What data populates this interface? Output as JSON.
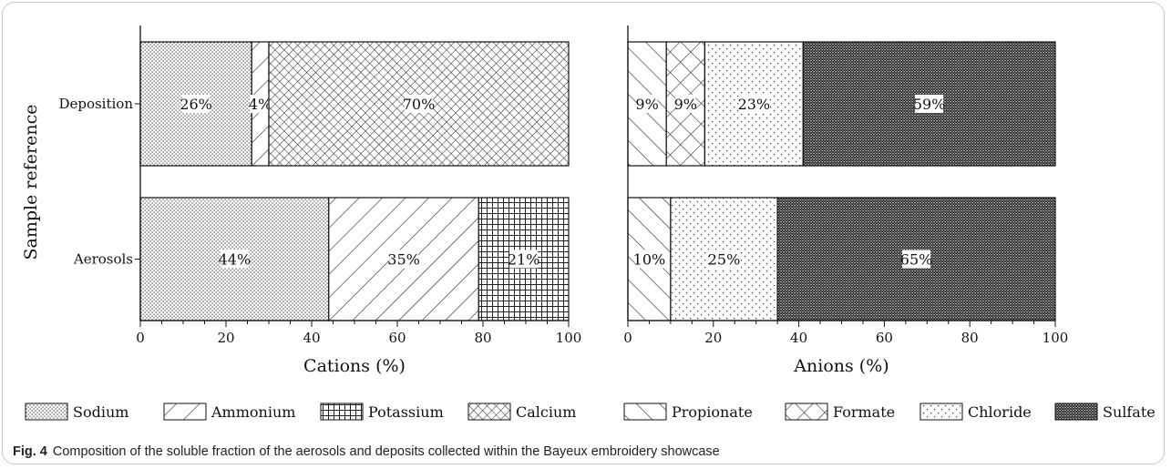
{
  "caption": {
    "label": "Fig. 4",
    "text": "Composition of the soluble fraction of the aerosols and deposits collected within the Bayeux embroidery showcase"
  },
  "chart_data": [
    {
      "type": "bar",
      "orientation": "horizontal",
      "stacked": true,
      "ylabel": "Sample reference",
      "xlabel": "Cations (%)",
      "xlim": [
        0,
        100
      ],
      "xticks": [
        0,
        20,
        40,
        60,
        80,
        100
      ],
      "categories": [
        "Deposition",
        "Aerosols"
      ],
      "series": [
        {
          "name": "Sodium",
          "values": [
            26,
            44
          ],
          "labels": [
            "26%",
            "44%"
          ],
          "pattern": "dots"
        },
        {
          "name": "Ammonium",
          "values": [
            4,
            35
          ],
          "labels": [
            "4%",
            "35%"
          ],
          "pattern": "back-diagonal"
        },
        {
          "name": "Potassium",
          "values": [
            0,
            21
          ],
          "labels": [
            "",
            "21%"
          ],
          "pattern": "grid"
        },
        {
          "name": "Calcium",
          "values": [
            70,
            0
          ],
          "labels": [
            "70%",
            ""
          ],
          "pattern": "crosshatch-fine"
        }
      ]
    },
    {
      "type": "bar",
      "orientation": "horizontal",
      "stacked": true,
      "xlabel": "Anions (%)",
      "xlim": [
        0,
        100
      ],
      "xticks": [
        0,
        20,
        40,
        60,
        80,
        100
      ],
      "categories": [
        "Deposition",
        "Aerosols"
      ],
      "series": [
        {
          "name": "Propionate",
          "values": [
            9,
            10
          ],
          "labels": [
            "9%",
            "10%"
          ],
          "pattern": "forward-diagonal"
        },
        {
          "name": "Formate",
          "values": [
            9,
            0
          ],
          "labels": [
            "9%",
            ""
          ],
          "pattern": "crosshatch"
        },
        {
          "name": "Chloride",
          "values": [
            23,
            25
          ],
          "labels": [
            "23%",
            "25%"
          ],
          "pattern": "sparse-dots"
        },
        {
          "name": "Sulfate",
          "values": [
            59,
            65
          ],
          "labels": [
            "59%",
            "65%"
          ],
          "pattern": "dense"
        }
      ]
    }
  ],
  "legend": [
    "Sodium",
    "Ammonium",
    "Potassium",
    "Calcium",
    "Propionate",
    "Formate",
    "Chloride",
    "Sulfate"
  ]
}
